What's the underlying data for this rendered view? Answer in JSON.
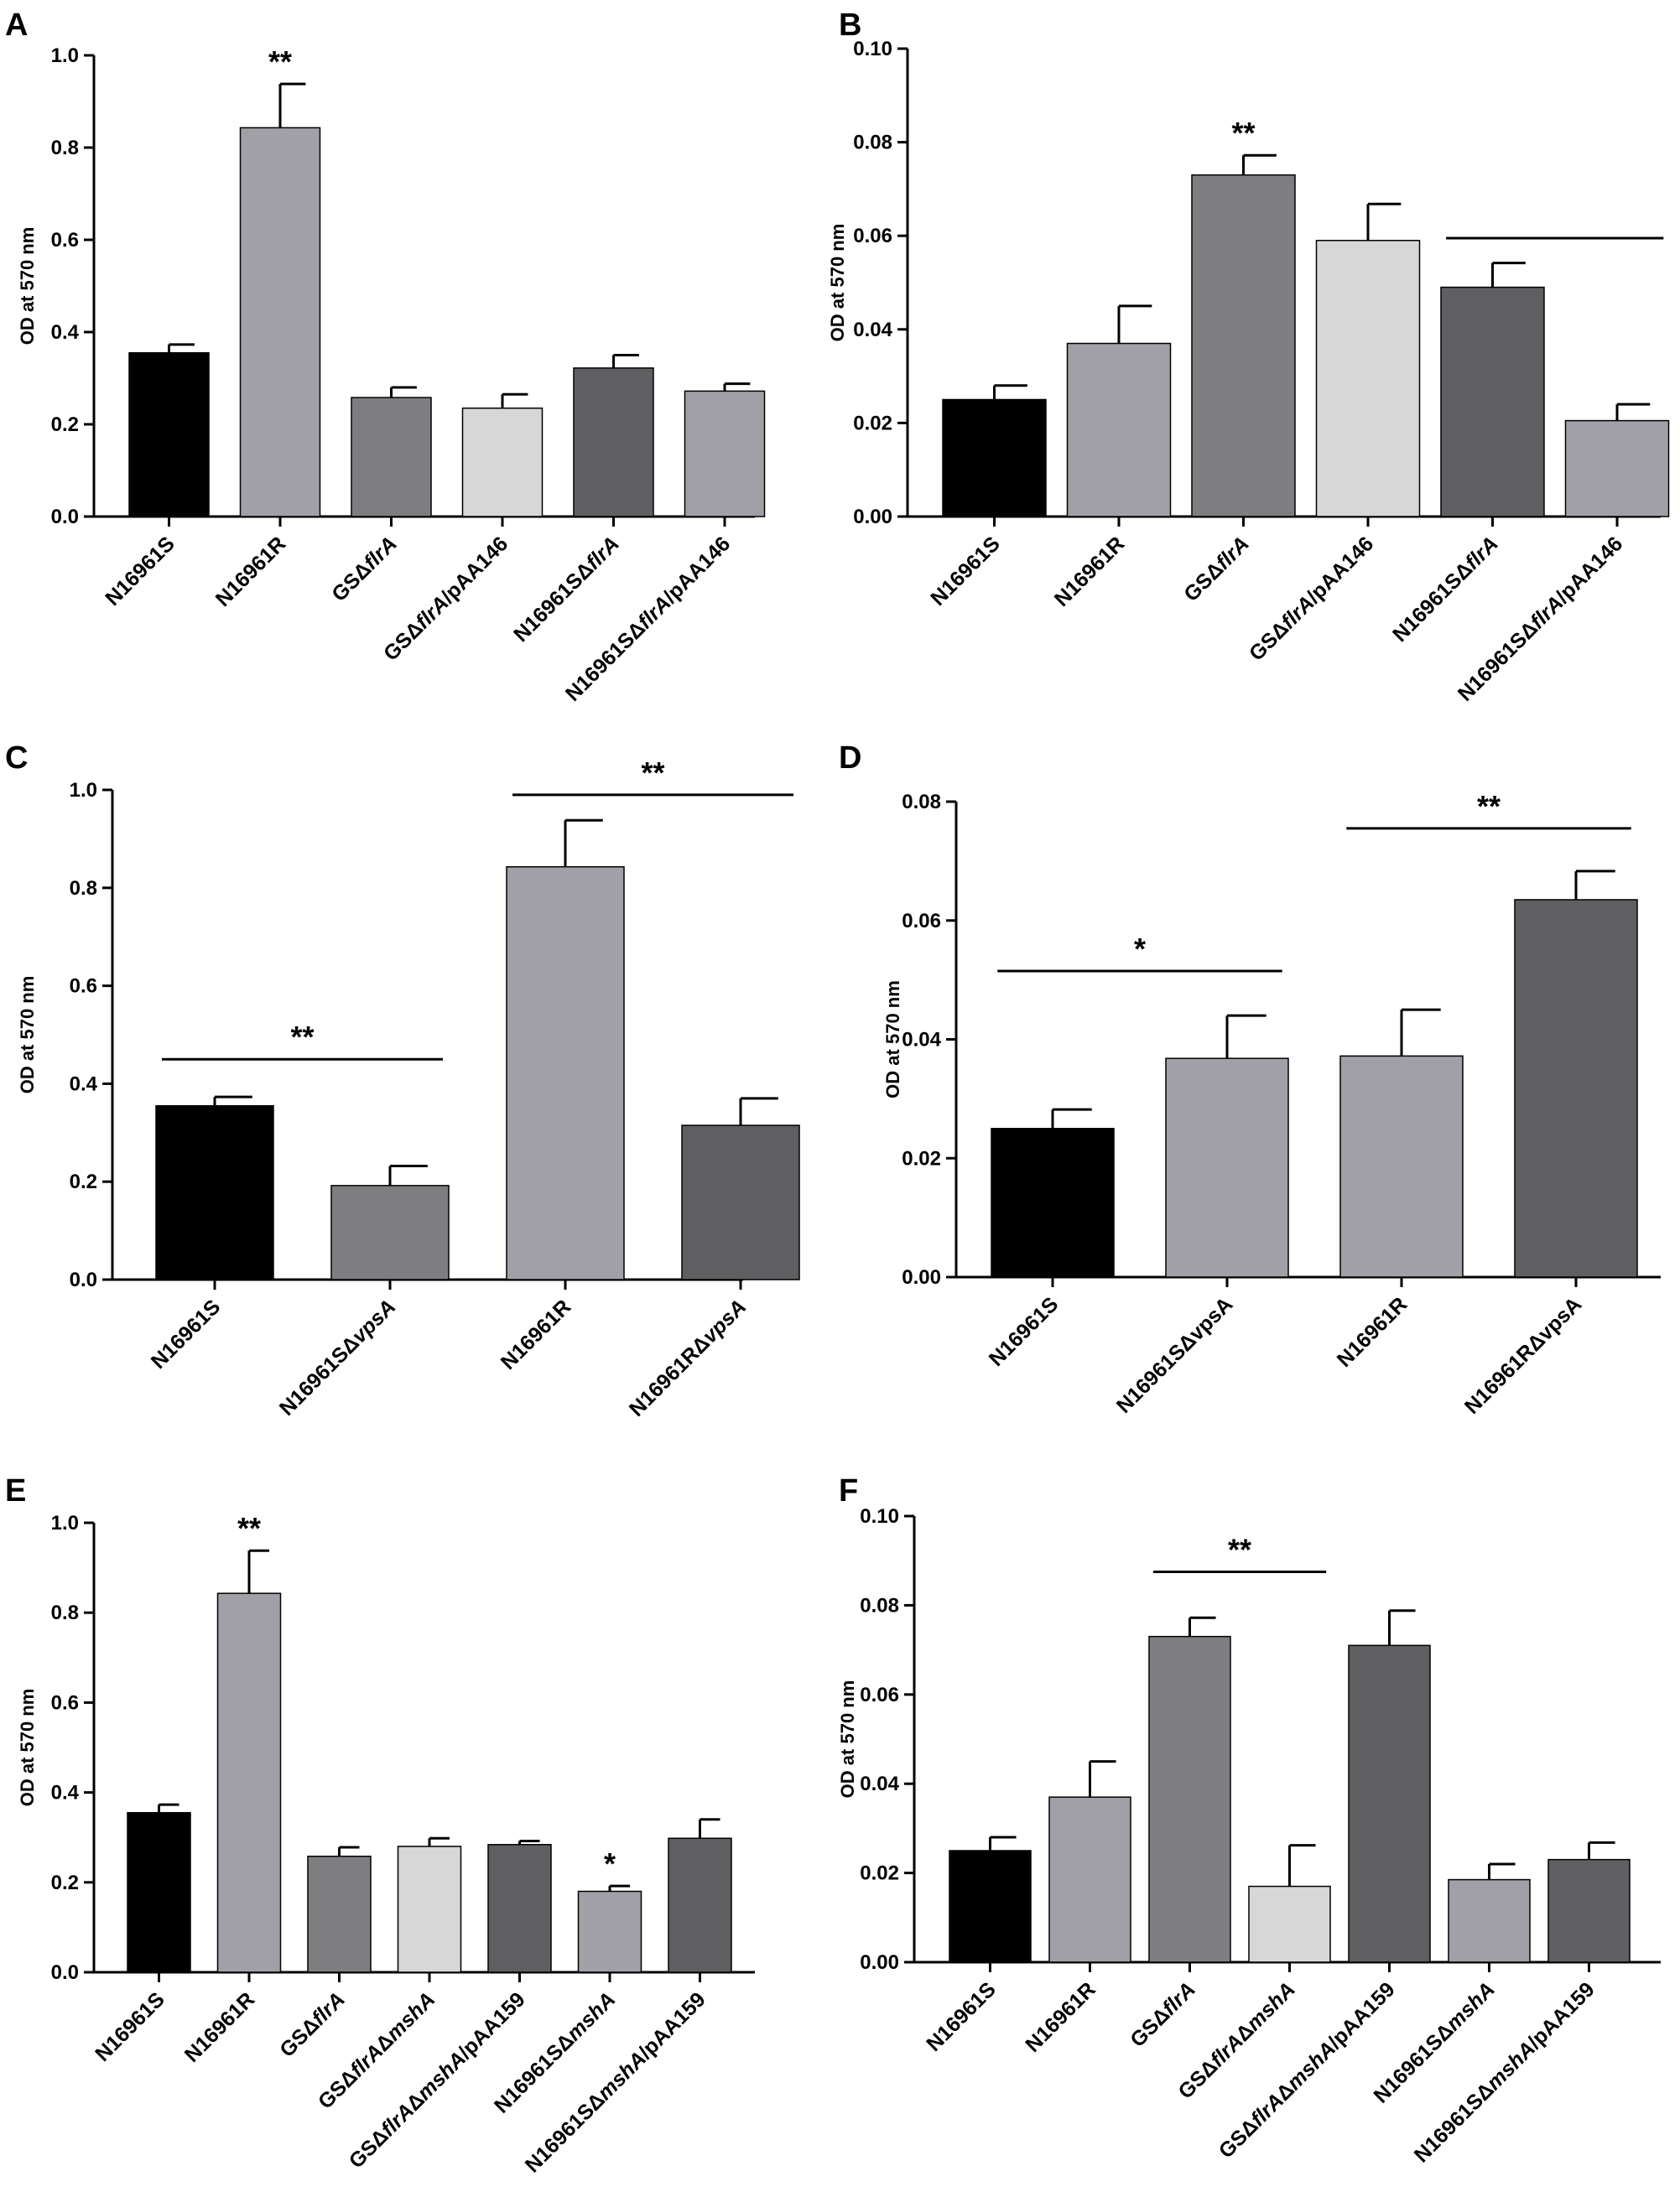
{
  "chart_data": [
    {
      "panel": "A",
      "type": "bar",
      "ylabel": "OD at 570 nm",
      "ylim": [
        0,
        1.0
      ],
      "yticks": [
        "0.0",
        "0.2",
        "0.4",
        "0.6",
        "0.8",
        "1.0"
      ],
      "categories": [
        {
          "pre": "N16961S"
        },
        {
          "pre": "N16961R"
        },
        {
          "pre": "GSΔ",
          "it": "flrA"
        },
        {
          "pre": "GSΔ",
          "it": "flrA",
          "post": "/pAA146"
        },
        {
          "pre": "N16961SΔ",
          "it": "flrA"
        },
        {
          "pre": "N16961SΔ",
          "it": "flrA",
          "post": "/pAA146"
        }
      ],
      "values": [
        0.355,
        0.843,
        0.258,
        0.235,
        0.322,
        0.272
      ],
      "errors": [
        0.018,
        0.095,
        0.022,
        0.03,
        0.028,
        0.016
      ],
      "colors": [
        "#000000",
        "#a0a0a6",
        "#7e7e80",
        "#d7d7d7",
        "#5f5f61",
        "#a0a0a6"
      ],
      "annotations": [
        {
          "kind": "star",
          "bar": 1,
          "text": "**"
        }
      ]
    },
    {
      "panel": "B",
      "type": "bar",
      "ylabel": "OD at 570 nm",
      "ylim": [
        0,
        0.1
      ],
      "yticks": [
        "0.00",
        "0.02",
        "0.04",
        "0.06",
        "0.08",
        "0.10"
      ],
      "categories": [
        {
          "pre": "N16961S"
        },
        {
          "pre": "N16961R"
        },
        {
          "pre": "GSΔ",
          "it": "flrA"
        },
        {
          "pre": "GSΔ",
          "it": "flrA",
          "post": "/pAA146"
        },
        {
          "pre": "N16961SΔ",
          "it": "flrA"
        },
        {
          "pre": "N16961SΔ",
          "it": "flrA",
          "post": "/pAA146"
        }
      ],
      "values": [
        0.025,
        0.037,
        0.073,
        0.059,
        0.049,
        0.0205
      ],
      "errors": [
        0.003,
        0.008,
        0.0042,
        0.0078,
        0.0052,
        0.0035
      ],
      "colors": [
        "#000000",
        "#a0a0a6",
        "#7e7e80",
        "#d7d7d7",
        "#5f5f61",
        "#a0a0a6"
      ],
      "annotations": [
        {
          "kind": "star",
          "bar": 2,
          "text": "**"
        },
        {
          "kind": "line",
          "from": 4,
          "to": 5,
          "y": 0.0595,
          "text": ""
        }
      ]
    },
    {
      "panel": "C",
      "type": "bar",
      "ylabel": "OD at 570 nm",
      "ylim": [
        0,
        1.0
      ],
      "yticks": [
        "0.0",
        "0.2",
        "0.4",
        "0.6",
        "0.8",
        "1.0"
      ],
      "categories": [
        {
          "pre": "N16961S"
        },
        {
          "pre": "N16961SΔ",
          "it": "vpsA"
        },
        {
          "pre": "N16961R"
        },
        {
          "pre": "N16961RΔ",
          "it": "vpsA"
        }
      ],
      "values": [
        0.355,
        0.192,
        0.843,
        0.315
      ],
      "errors": [
        0.018,
        0.04,
        0.095,
        0.055
      ],
      "colors": [
        "#000000",
        "#7e7e80",
        "#a0a0a6",
        "#5f5f61"
      ],
      "annotations": [
        {
          "kind": "line",
          "from": 0,
          "to": 1,
          "y": 0.45,
          "text": "**"
        },
        {
          "kind": "line",
          "from": 2,
          "to": 3,
          "y": 0.99,
          "text": "**"
        }
      ]
    },
    {
      "panel": "D",
      "type": "bar",
      "ylabel": "OD at 570 nm",
      "ylim": [
        0,
        0.08
      ],
      "yticks": [
        "0.00",
        "0.02",
        "0.04",
        "0.06",
        "0.08"
      ],
      "categories": [
        {
          "pre": "N16961S"
        },
        {
          "pre": "N16961SΔvpsA"
        },
        {
          "pre": "N16961R"
        },
        {
          "pre": "N16961RΔvpsA"
        }
      ],
      "values": [
        0.025,
        0.0368,
        0.0372,
        0.0635
      ],
      "errors": [
        0.0032,
        0.0072,
        0.0078,
        0.0048
      ],
      "colors": [
        "#000000",
        "#a0a0a6",
        "#a0a0a6",
        "#5f5f61"
      ],
      "annotations": [
        {
          "kind": "line",
          "from": 0,
          "to": 1,
          "y": 0.0515,
          "text": "*"
        },
        {
          "kind": "line",
          "from": 2,
          "to": 3,
          "y": 0.0755,
          "text": "**"
        }
      ]
    },
    {
      "panel": "E",
      "type": "bar",
      "ylabel": "OD at 570 nm",
      "ylim": [
        0,
        1.0
      ],
      "yticks": [
        "0.0",
        "0.2",
        "0.4",
        "0.6",
        "0.8",
        "1.0"
      ],
      "categories": [
        {
          "pre": "N16961S"
        },
        {
          "pre": "N16961R"
        },
        {
          "pre": "GSΔ",
          "it": "flrA"
        },
        {
          "pre": "GSΔ",
          "it": "flrA",
          "mid": "Δ",
          "it2": "mshA"
        },
        {
          "pre": "GSΔ",
          "it": "flrA",
          "mid": "Δ",
          "it2": "mshA",
          "post": "/pAA159"
        },
        {
          "pre": "N16961SΔ",
          "it": "mshA"
        },
        {
          "pre": "N16961SΔ",
          "it": "mshA",
          "post": "/pAA159"
        }
      ],
      "values": [
        0.355,
        0.843,
        0.258,
        0.28,
        0.284,
        0.18,
        0.298
      ],
      "errors": [
        0.018,
        0.095,
        0.02,
        0.018,
        0.008,
        0.012,
        0.042
      ],
      "colors": [
        "#000000",
        "#a0a0a6",
        "#7e7e80",
        "#d7d7d7",
        "#5f5f61",
        "#a0a0a6",
        "#5f5f61"
      ],
      "annotations": [
        {
          "kind": "star",
          "bar": 1,
          "text": "**"
        },
        {
          "kind": "star",
          "bar": 5,
          "text": "*"
        }
      ]
    },
    {
      "panel": "F",
      "type": "bar",
      "ylabel": "OD at 570 nm",
      "ylim": [
        0,
        0.1
      ],
      "yticks": [
        "0.00",
        "0.02",
        "0.04",
        "0.06",
        "0.08",
        "0.10"
      ],
      "categories": [
        {
          "pre": "N16961S"
        },
        {
          "pre": "N16961R"
        },
        {
          "pre": "GSΔ",
          "it": "flrA"
        },
        {
          "pre": "GSΔ",
          "it": "flrA",
          "mid": "Δ",
          "it2": "mshA"
        },
        {
          "pre": "GSΔ",
          "it": "flrA",
          "mid": "Δ",
          "it2": "mshA",
          "post": "/pAA159"
        },
        {
          "pre": "N16961SΔ",
          "it": "mshA"
        },
        {
          "pre": "N16961SΔ",
          "it": "mshA",
          "post": "/pAA159"
        }
      ],
      "values": [
        0.025,
        0.037,
        0.073,
        0.017,
        0.071,
        0.0185,
        0.023
      ],
      "errors": [
        0.003,
        0.008,
        0.0042,
        0.0092,
        0.0078,
        0.0035,
        0.0038
      ],
      "colors": [
        "#000000",
        "#a0a0a6",
        "#7e7e80",
        "#d7d7d7",
        "#5f5f61",
        "#a0a0a6",
        "#5f5f61"
      ],
      "annotations": [
        {
          "kind": "line",
          "from": 2,
          "to": 3,
          "y": 0.0875,
          "text": "**"
        }
      ]
    }
  ]
}
